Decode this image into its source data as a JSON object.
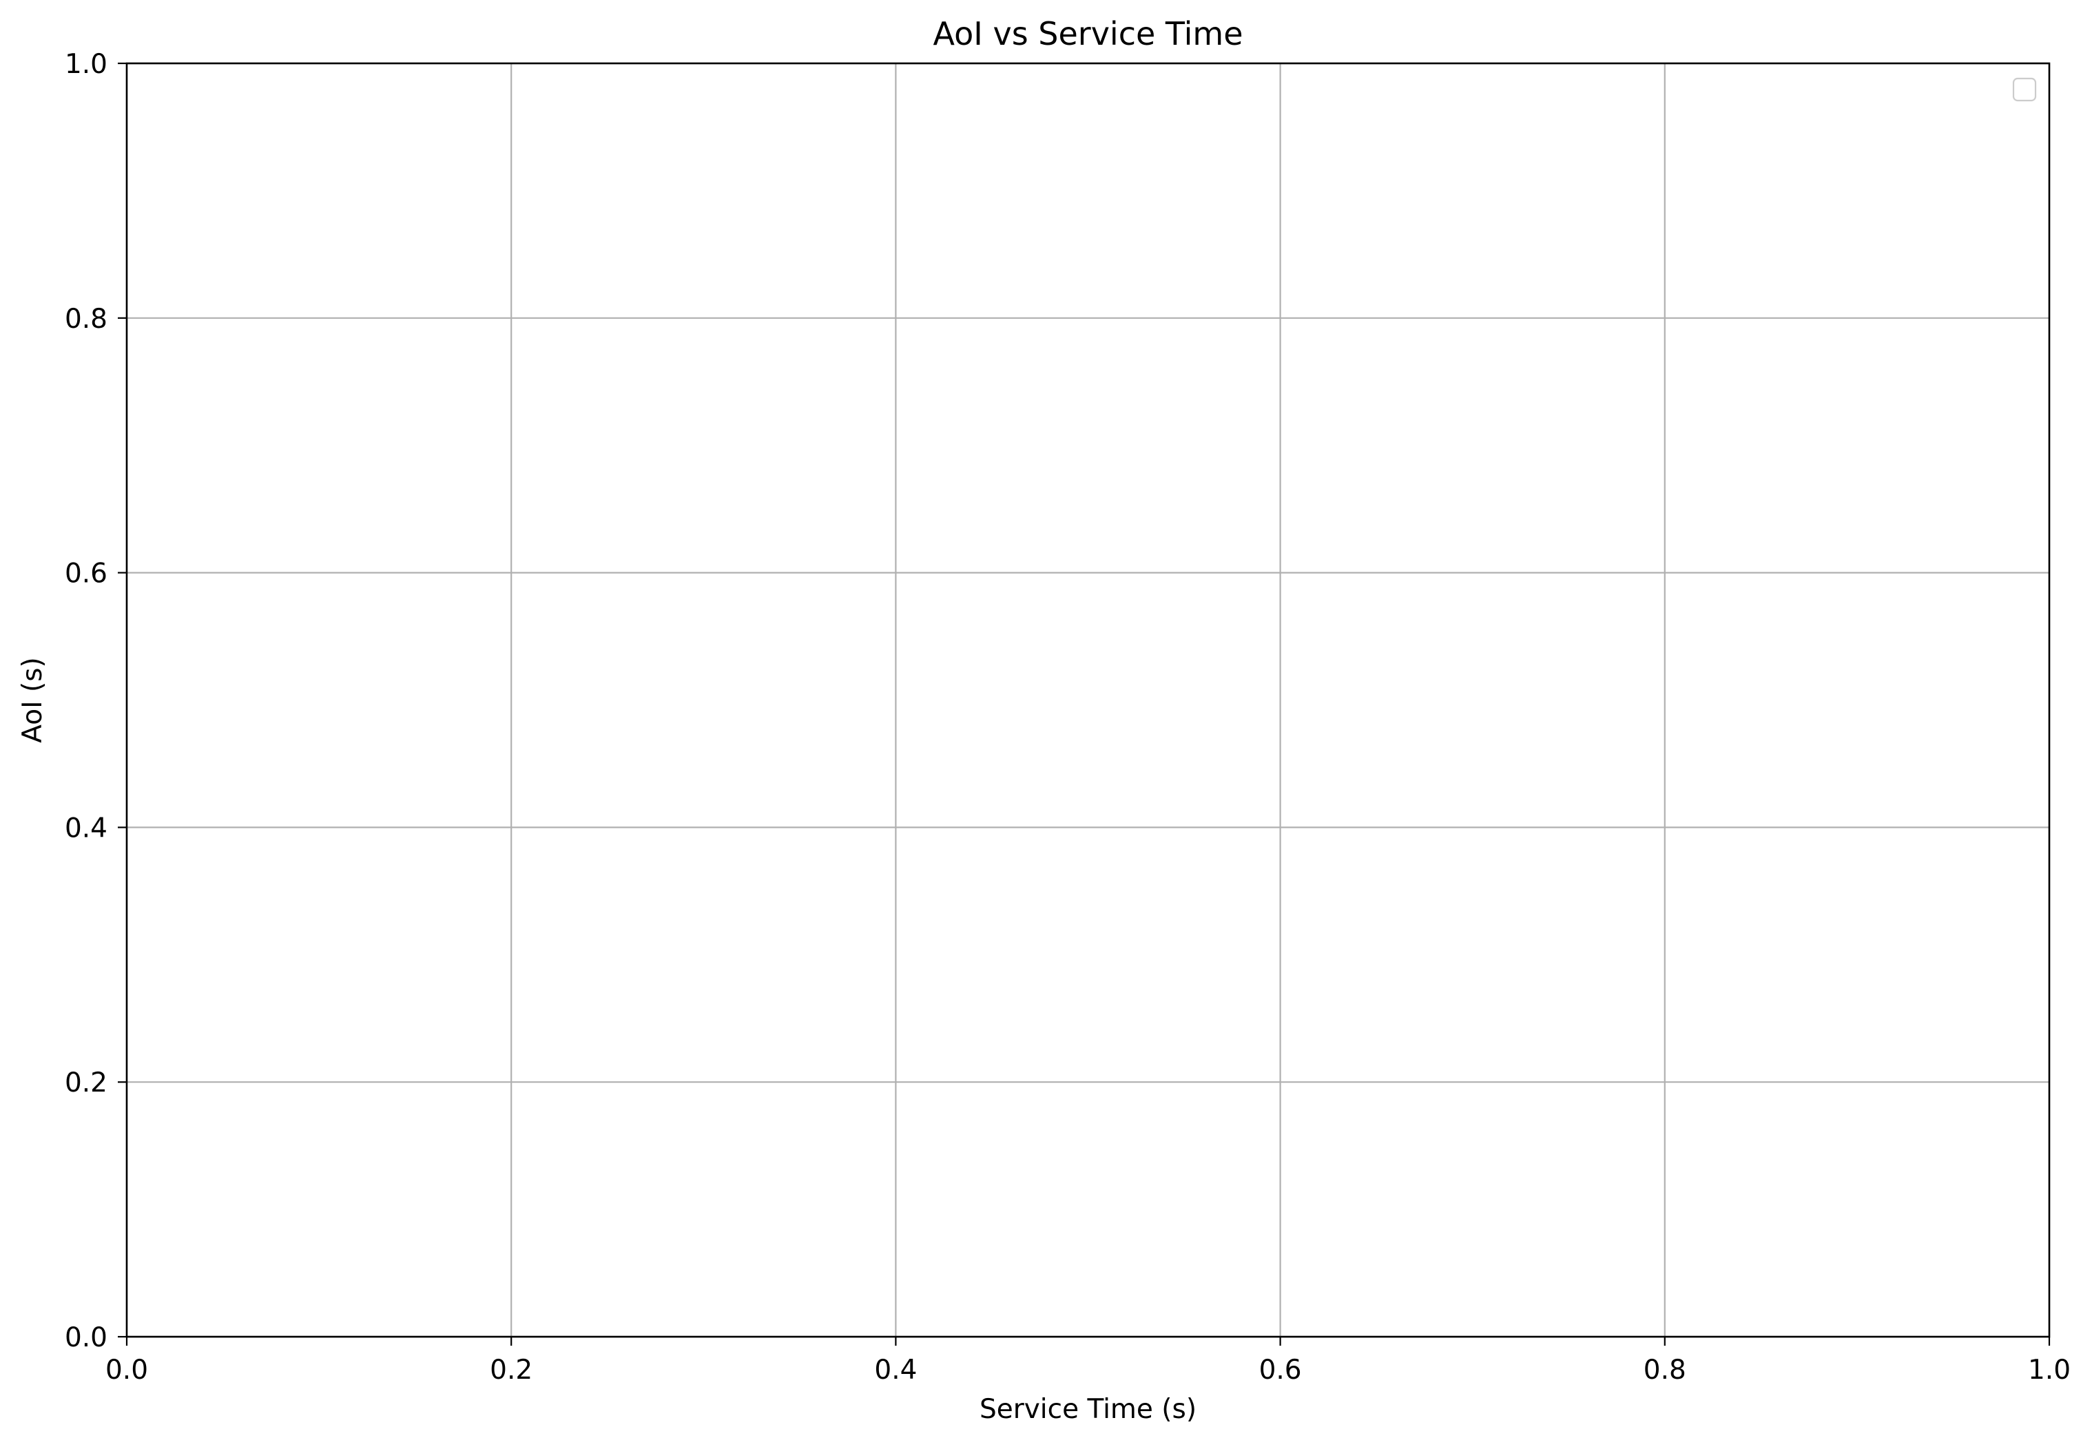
{
  "chart_data": {
    "type": "line",
    "title": "AoI vs Service Time",
    "xlabel": "Service Time (s)",
    "ylabel": "AoI (s)",
    "xlim": [
      0.0,
      1.0
    ],
    "ylim": [
      0.0,
      1.0
    ],
    "xticks": [
      0.0,
      0.2,
      0.4,
      0.6,
      0.8,
      1.0
    ],
    "yticks": [
      0.0,
      0.2,
      0.4,
      0.6,
      0.8,
      1.0
    ],
    "xtick_labels": [
      "0.0",
      "0.2",
      "0.4",
      "0.6",
      "0.8",
      "1.0"
    ],
    "ytick_labels": [
      "0.0",
      "0.2",
      "0.4",
      "0.6",
      "0.8",
      "1.0"
    ],
    "grid": true,
    "legend": {
      "placement": "top-right",
      "entries": []
    },
    "series": []
  },
  "colors": {
    "background": "#ffffff",
    "axis": "#000000",
    "grid": "#b0b0b0",
    "legend_border": "#cccccc",
    "text": "#000000"
  }
}
